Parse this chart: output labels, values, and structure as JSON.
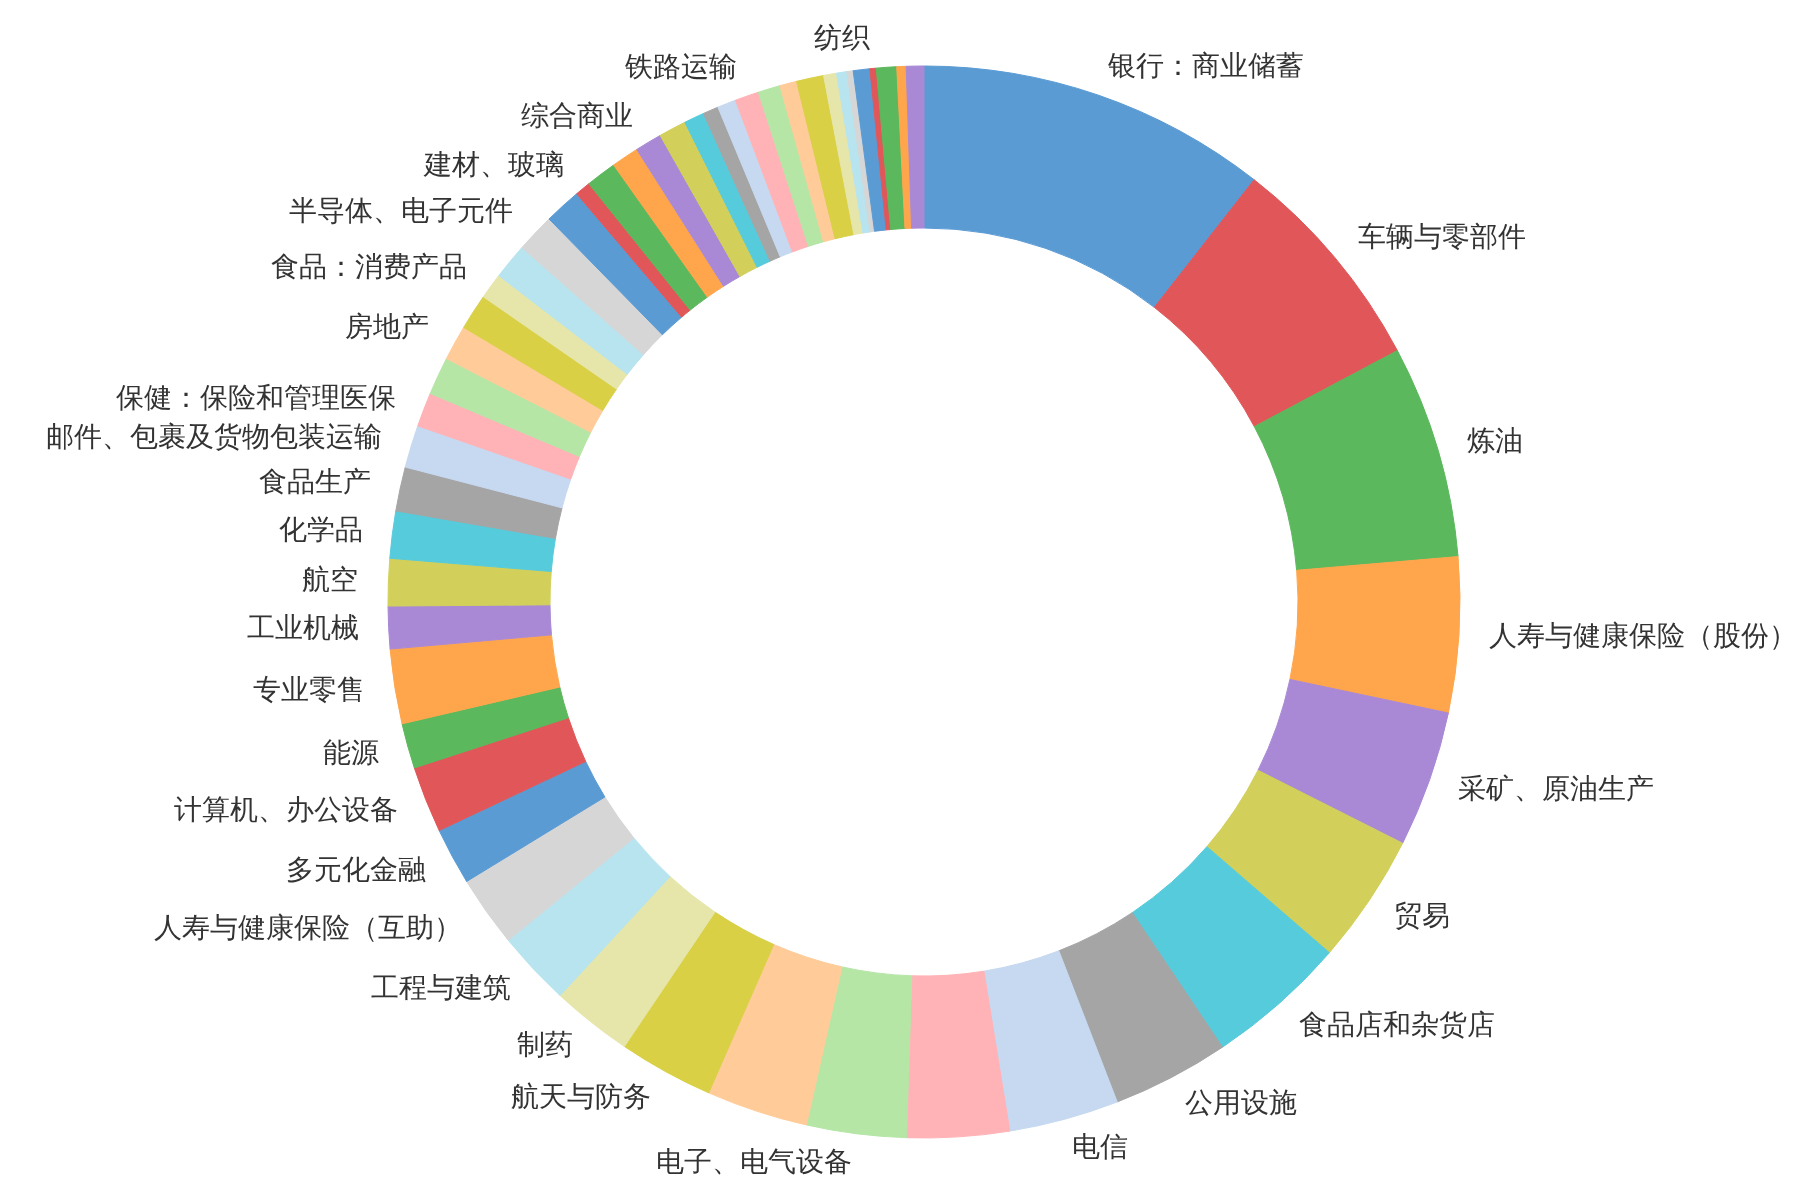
{
  "chart_data": {
    "type": "donut",
    "categories": [
      "银行：商业储蓄",
      "车辆与零部件",
      "炼油",
      "人寿与健康保险（股份）",
      "采矿、原油生产",
      "贸易",
      "食品店和杂货店",
      "公用设施",
      "电信",
      null,
      "电子、电气设备",
      null,
      "航天与防务",
      "制药",
      "工程与建筑",
      "人寿与健康保险（互助）",
      "多元化金融",
      "计算机、办公设备",
      "能源",
      "专业零售",
      "工业机械",
      "航空",
      "化学品",
      "食品生产",
      "邮件、包裹及货物包装运输",
      "保健：保险和管理医保",
      null,
      "房地产",
      null,
      "食品：消费产品",
      null,
      "半导体、电子元件",
      null,
      "建材、玻璃",
      null,
      null,
      "综合商业",
      null,
      null,
      null,
      null,
      "铁路运输",
      null,
      null,
      null,
      null,
      null,
      null,
      null,
      "纺织",
      null,
      null,
      null
    ],
    "values": [
      10.56,
      6.67,
      6.42,
      4.67,
      4.11,
      3.92,
      4.25,
      3.53,
      3.31,
      3.08,
      3.0,
      3.06,
      2.86,
      2.44,
      2.25,
      2.14,
      1.72,
      2.0,
      1.36,
      2.25,
      1.28,
      1.42,
      1.42,
      1.33,
      1.28,
      1.03,
      1.14,
      1.06,
      1.08,
      0.78,
      1.08,
      1.17,
      1.11,
      0.47,
      0.92,
      0.83,
      0.81,
      0.83,
      0.61,
      0.47,
      0.56,
      0.72,
      0.67,
      0.51,
      0.82,
      0.39,
      0.31,
      0.19,
      0.5,
      0.19,
      0.61,
      0.28,
      0.53
    ],
    "colors": [
      "#5a9bd4",
      "#e15759",
      "#5cb85c",
      "#ffa64d",
      "#a989d6",
      "#d2d05b",
      "#56cbdb",
      "#a5a5a5",
      "#c6d9f1",
      "#ffb3b6",
      "#b5e6a6",
      "#ffcc99",
      "#d9d045",
      "#e6e6aa",
      "#b7e4ee",
      "#d6d6d6",
      "#5a9bd4",
      "#e15759",
      "#5cb85c",
      "#ffa64d",
      "#a989d6",
      "#d2d05b",
      "#56cbdb",
      "#a5a5a5",
      "#c6d9f1",
      "#ffb3b6",
      "#b5e6a6",
      "#ffcc99",
      "#d9d045",
      "#e6e6aa",
      "#b7e4ee",
      "#d6d6d6",
      "#5a9bd4",
      "#e15759",
      "#5cb85c",
      "#ffa64d",
      "#a989d6",
      "#d2d05b",
      "#56cbdb",
      "#a5a5a5",
      "#c6d9f1",
      "#ffb3b6",
      "#b5e6a6",
      "#ffcc99",
      "#d9d045",
      "#e6e6aa",
      "#b7e4ee",
      "#d6d6d6",
      "#5a9bd4",
      "#e15759",
      "#5cb85c",
      "#ffa64d",
      "#a989d6"
    ]
  }
}
